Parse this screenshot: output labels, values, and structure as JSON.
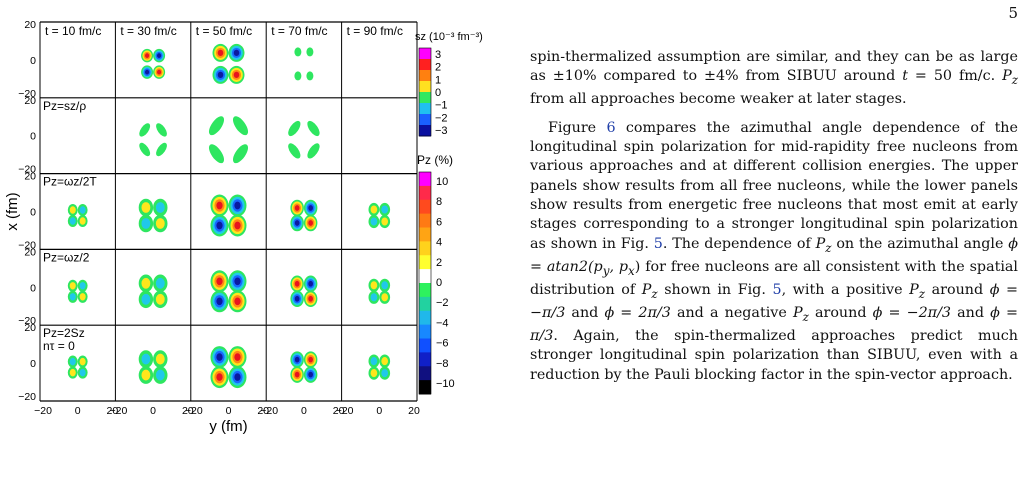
{
  "page": {
    "number": "5"
  },
  "figure": {
    "time_labels": [
      "t = 10 fm/c",
      "t = 30 fm/c",
      "t = 50 fm/c",
      "t = 70 fm/c",
      "t = 90 fm/c"
    ],
    "row_labels": [
      "",
      "P",
      "P",
      "P",
      "P"
    ],
    "row_label_full": [
      "",
      "Pz=sz/ρ",
      "Pz=ωz/2T",
      "Pz=ωz/2",
      "Pz=2Sz"
    ],
    "row_label_extra": [
      "",
      "",
      "",
      "",
      "nτ = 0"
    ],
    "y_ticks": [
      "20",
      "0",
      "−20"
    ],
    "x_ticks": [
      "−20",
      "0",
      "20"
    ],
    "x_axis_label": "y (fm)",
    "y_axis_label": "x (fm)",
    "colorbar_sz": {
      "title": "sz (10⁻³ fm⁻³)",
      "ticks": [
        "3",
        "2",
        "1",
        "0",
        "−1",
        "−2",
        "−3"
      ]
    },
    "colorbar_pz": {
      "title": "Pz (%)",
      "ticks": [
        "10",
        "8",
        "6",
        "4",
        "2",
        "0",
        "−2",
        "−4",
        "−6",
        "−8",
        "−10"
      ],
      "colors": [
        "#ff00ff",
        "#ff2a4a",
        "#ff4a1e",
        "#ff7a14",
        "#ffa414",
        "#ffd21c",
        "#ffff2e",
        "#ffffff",
        "#2ef25e",
        "#22d2a0",
        "#20b8ea",
        "#1888ff",
        "#1050ff",
        "#1020c8",
        "#101080",
        "#000000"
      ]
    }
  },
  "text": {
    "p1": {
      "s1": "spin-thermalized assumption are similar, and they can be as large as ±10% compared to ±4% from SIBUU around ",
      "m1": "t",
      "s2": " = 50 fm/c. ",
      "m2": "P",
      "m2sub": "z",
      "s3": " from all approaches become weaker at later stages."
    },
    "p2": {
      "a": "Figure ",
      "ref1": "6",
      "b": " compares the azimuthal angle dependence of the longitudinal spin polarization for mid-rapidity free nucleons from various approaches and at different collision energies. The upper panels show results from all free nucleons, while the lower panels show results from energetic free nucleons that most emit at early stages corresponding to a stronger longitudinal spin polarization as shown in Fig. ",
      "ref2": "5",
      "c": ". The dependence of ",
      "d": " on the azimuthal angle ",
      "phi_def": "ϕ = atan2(p",
      "phi_sub1": "y",
      "phi_mid": ", p",
      "phi_sub2": "x",
      "phi_end": ")",
      "e": " for free nucleons are all consistent with the spatial distribution of ",
      "f": " shown in Fig. ",
      "ref3": "5",
      "g": ", with a positive ",
      "h": " around ",
      "phi1": "ϕ = −π/3",
      "and1": " and ",
      "phi2": "ϕ = 2π/3",
      "i": " and a negative ",
      "j": " around ",
      "phi3": "ϕ = −2π/3",
      "and2": " and ",
      "phi4": "ϕ = π/3",
      "k": ". Again, the spin-thermalized approaches predict much stronger longitudinal spin polarization than SIBUU, even with a reduction by the Pauli blocking factor in the spin-vector approach."
    }
  }
}
